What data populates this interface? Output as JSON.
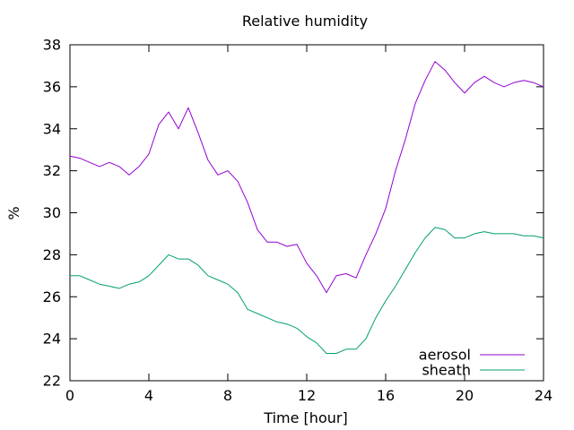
{
  "chart_data": {
    "type": "line",
    "title": "Relative humidity",
    "xlabel": "Time [hour]",
    "ylabel": "%",
    "xlim": [
      0,
      24
    ],
    "ylim": [
      22,
      38
    ],
    "x_ticks": [
      "0",
      "4",
      "8",
      "12",
      "16",
      "20",
      "24"
    ],
    "y_ticks": [
      "22",
      "24",
      "26",
      "28",
      "30",
      "32",
      "34",
      "36",
      "38"
    ],
    "grid": false,
    "legend_position": "bottom-right",
    "series": [
      {
        "name": "aerosol",
        "color": "#9400d3",
        "x": [
          0,
          0.5,
          1,
          1.5,
          2,
          2.5,
          3,
          3.5,
          4,
          4.5,
          5,
          5.5,
          6,
          6.5,
          7,
          7.5,
          8,
          8.5,
          9,
          9.5,
          10,
          10.5,
          11,
          11.5,
          12,
          12.5,
          13,
          13.5,
          14,
          14.5,
          15,
          15.5,
          16,
          16.5,
          17,
          17.5,
          18,
          18.5,
          19,
          19.5,
          20,
          20.5,
          21,
          21.5,
          22,
          22.5,
          23,
          23.5,
          24
        ],
        "y": [
          32.7,
          32.6,
          32.4,
          32.2,
          32.4,
          32.2,
          31.8,
          32.2,
          32.8,
          34.2,
          34.8,
          34.0,
          35.0,
          33.8,
          32.5,
          31.8,
          32.0,
          31.5,
          30.5,
          29.2,
          28.6,
          28.6,
          28.4,
          28.5,
          27.6,
          27.0,
          26.2,
          27.0,
          27.1,
          26.9,
          28.0,
          29.0,
          30.2,
          32.0,
          33.5,
          35.2,
          36.3,
          37.2,
          36.8,
          36.2,
          35.7,
          36.2,
          36.5,
          36.2,
          36.0,
          36.2,
          36.3,
          36.2,
          36.0
        ]
      },
      {
        "name": "sheath",
        "color": "#009e73",
        "x": [
          0,
          0.5,
          1,
          1.5,
          2,
          2.5,
          3,
          3.5,
          4,
          4.5,
          5,
          5.5,
          6,
          6.5,
          7,
          7.5,
          8,
          8.5,
          9,
          9.5,
          10,
          10.5,
          11,
          11.5,
          12,
          12.5,
          13,
          13.5,
          14,
          14.5,
          15,
          15.5,
          16,
          16.5,
          17,
          17.5,
          18,
          18.5,
          19,
          19.5,
          20,
          20.5,
          21,
          21.5,
          22,
          22.5,
          23,
          23.5,
          24
        ],
        "y": [
          27.0,
          27.0,
          26.8,
          26.6,
          26.5,
          26.4,
          26.6,
          26.7,
          27.0,
          27.5,
          28.0,
          27.8,
          27.8,
          27.5,
          27.0,
          26.8,
          26.6,
          26.2,
          25.4,
          25.2,
          25.0,
          24.8,
          24.7,
          24.5,
          24.1,
          23.8,
          23.3,
          23.3,
          23.5,
          23.5,
          24.0,
          25.0,
          25.8,
          26.5,
          27.3,
          28.1,
          28.8,
          29.3,
          29.2,
          28.8,
          28.8,
          29.0,
          29.1,
          29.0,
          29.0,
          29.0,
          28.9,
          28.9,
          28.8
        ]
      }
    ]
  }
}
